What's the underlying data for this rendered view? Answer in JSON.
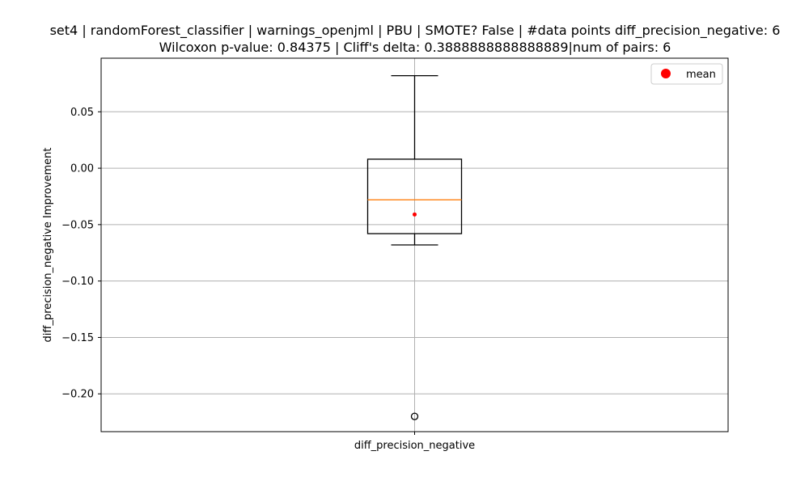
{
  "chart_data": {
    "type": "box",
    "title_lines": [
      "set4 | randomForest_classifier | warnings_openjml | PBU | SMOTE? False | #data points diff_precision_negative: 6",
      "Wilcoxon p-value: 0.84375 | Cliff's delta: 0.3888888888888889|num of pairs: 6"
    ],
    "xlabel": "",
    "ylabel": "diff_precision_negative Improvement",
    "categories": [
      "diff_precision_negative"
    ],
    "ylim": [
      -0.2335,
      0.0975
    ],
    "yticks": [
      0.05,
      0.0,
      -0.05,
      -0.1,
      -0.15,
      -0.2
    ],
    "ytick_labels": [
      "0.05",
      "0.00",
      "−0.05",
      "−0.10",
      "−0.15",
      "−0.20"
    ],
    "grid": true,
    "legend": {
      "placement": "top-right",
      "entries": [
        "mean"
      ]
    },
    "boxes": [
      {
        "category": "diff_precision_negative",
        "whisker_low": -0.068,
        "q1": -0.058,
        "median": -0.028,
        "q3": 0.008,
        "whisker_high": 0.082,
        "mean": -0.041,
        "outliers": [
          -0.22
        ]
      }
    ],
    "colors": {
      "box": "#000000",
      "median": "#ff7f0e",
      "mean": "#ff0000",
      "grid": "#b0b0b0"
    }
  }
}
